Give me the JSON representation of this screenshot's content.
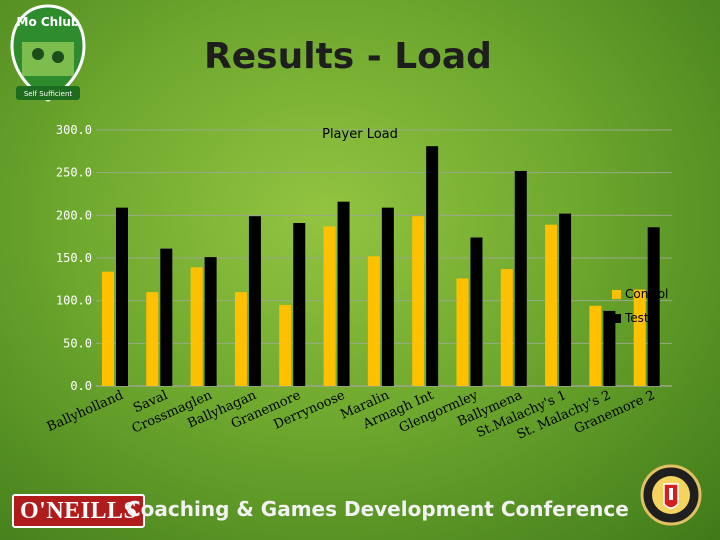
{
  "slide": {
    "title": "Results - Load",
    "footer_brand": "O'NEILLS",
    "footer_text": "Coaching & Games Development Conference",
    "logo_text": "Mo Chlub",
    "logo_tagline": "Self Sufficient"
  },
  "colors": {
    "control": "#ffc000",
    "test": "#000000",
    "gridline": "#9aa88a"
  },
  "chart_data": {
    "type": "bar",
    "title": "Player Load",
    "categories": [
      "Ballyholland",
      "Saval",
      "Crossmaglen",
      "Ballyhagan",
      "Granemore",
      "Derrynoose",
      "Maralin",
      "Armagh Int",
      "Glengormley",
      "Ballymena",
      "St.Malachy's 1",
      "St. Malachy's 2",
      "Granemore 2"
    ],
    "series": [
      {
        "name": "Control",
        "values": [
          134,
          110,
          139,
          110,
          95,
          187,
          152,
          199,
          126,
          137,
          189,
          94,
          113
        ]
      },
      {
        "name": "Test",
        "values": [
          209,
          161,
          151,
          199,
          191,
          216,
          209,
          281,
          174,
          252,
          202,
          88,
          186
        ]
      }
    ],
    "ylim": [
      0,
      300
    ],
    "yticks": [
      "0.0",
      "50.0",
      "100.0",
      "150.0",
      "200.0",
      "250.0",
      "300.0"
    ],
    "grid": true,
    "legend_position": "right"
  }
}
